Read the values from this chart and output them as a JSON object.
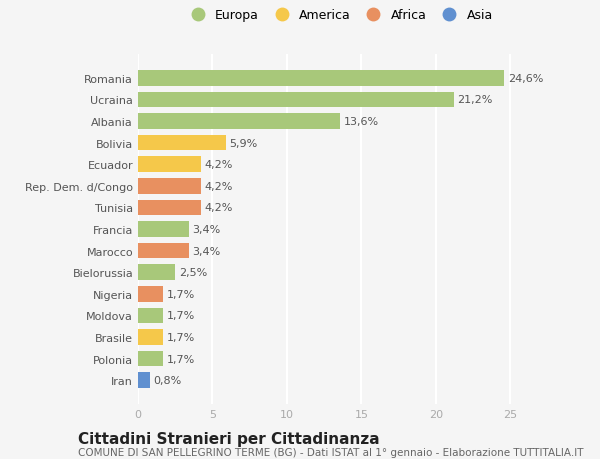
{
  "countries": [
    "Romania",
    "Ucraina",
    "Albania",
    "Bolivia",
    "Ecuador",
    "Rep. Dem. d/Congo",
    "Tunisia",
    "Francia",
    "Marocco",
    "Bielorussia",
    "Nigeria",
    "Moldova",
    "Brasile",
    "Polonia",
    "Iran"
  ],
  "values": [
    24.6,
    21.2,
    13.6,
    5.9,
    4.2,
    4.2,
    4.2,
    3.4,
    3.4,
    2.5,
    1.7,
    1.7,
    1.7,
    1.7,
    0.8
  ],
  "continents": [
    "Europa",
    "Europa",
    "Europa",
    "America",
    "America",
    "Africa",
    "Africa",
    "Europa",
    "Africa",
    "Europa",
    "Africa",
    "Europa",
    "America",
    "Europa",
    "Asia"
  ],
  "continent_colors": {
    "Europa": "#a8c87a",
    "America": "#f5c84a",
    "Africa": "#e89060",
    "Asia": "#6090d0"
  },
  "legend_order": [
    "Europa",
    "America",
    "Africa",
    "Asia"
  ],
  "title": "Cittadini Stranieri per Cittadinanza",
  "subtitle": "COMUNE DI SAN PELLEGRINO TERME (BG) - Dati ISTAT al 1° gennaio - Elaborazione TUTTITALIA.IT",
  "xlim": [
    0,
    27
  ],
  "xticks": [
    0,
    5,
    10,
    15,
    20,
    25
  ],
  "background_color": "#f5f5f5",
  "bar_height": 0.72,
  "label_fontsize": 8,
  "tick_fontsize": 8,
  "title_fontsize": 11,
  "subtitle_fontsize": 7.5
}
